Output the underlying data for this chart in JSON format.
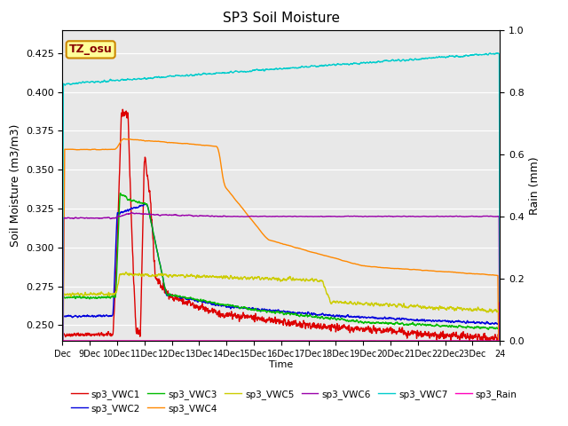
{
  "title": "SP3 Soil Moisture",
  "xlabel": "Time",
  "ylabel_left": "Soil Moisture (m3/m3)",
  "ylabel_right": "Rain (mm)",
  "ylim_left": [
    0.24,
    0.44
  ],
  "ylim_right": [
    0.0,
    1.0
  ],
  "bg_color": "#e8e8e8",
  "fig_color": "#ffffff",
  "label_box_text": "TZ_osu",
  "label_box_facecolor": "#ffff99",
  "label_box_edgecolor": "#cc8800",
  "series": {
    "sp3_VWC1": {
      "color": "#dd0000",
      "lw": 1.0
    },
    "sp3_VWC2": {
      "color": "#0000dd",
      "lw": 1.0
    },
    "sp3_VWC3": {
      "color": "#00bb00",
      "lw": 1.0
    },
    "sp3_VWC4": {
      "color": "#ff8800",
      "lw": 1.0
    },
    "sp3_VWC5": {
      "color": "#cccc00",
      "lw": 1.0
    },
    "sp3_VWC6": {
      "color": "#9900aa",
      "lw": 1.0
    },
    "sp3_VWC7": {
      "color": "#00cccc",
      "lw": 1.0
    },
    "sp3_Rain": {
      "color": "#ff00bb",
      "lw": 1.0
    }
  },
  "x_ticks": [
    0,
    1,
    2,
    3,
    4,
    5,
    6,
    7,
    8,
    9,
    10,
    11,
    12,
    13,
    14,
    15,
    16
  ],
  "x_tick_labels": [
    "Dec",
    "9Dec",
    "10Dec",
    "11Dec",
    "12Dec",
    "13Dec",
    "14Dec",
    "15Dec",
    "16Dec",
    "17Dec",
    "18Dec",
    "19Dec",
    "20Dec",
    "21Dec",
    "22Dec",
    "23Dec",
    "24"
  ],
  "legend_order": [
    "sp3_VWC1",
    "sp3_VWC2",
    "sp3_VWC3",
    "sp3_VWC4",
    "sp3_VWC5",
    "sp3_VWC6",
    "sp3_VWC7",
    "sp3_Rain"
  ]
}
